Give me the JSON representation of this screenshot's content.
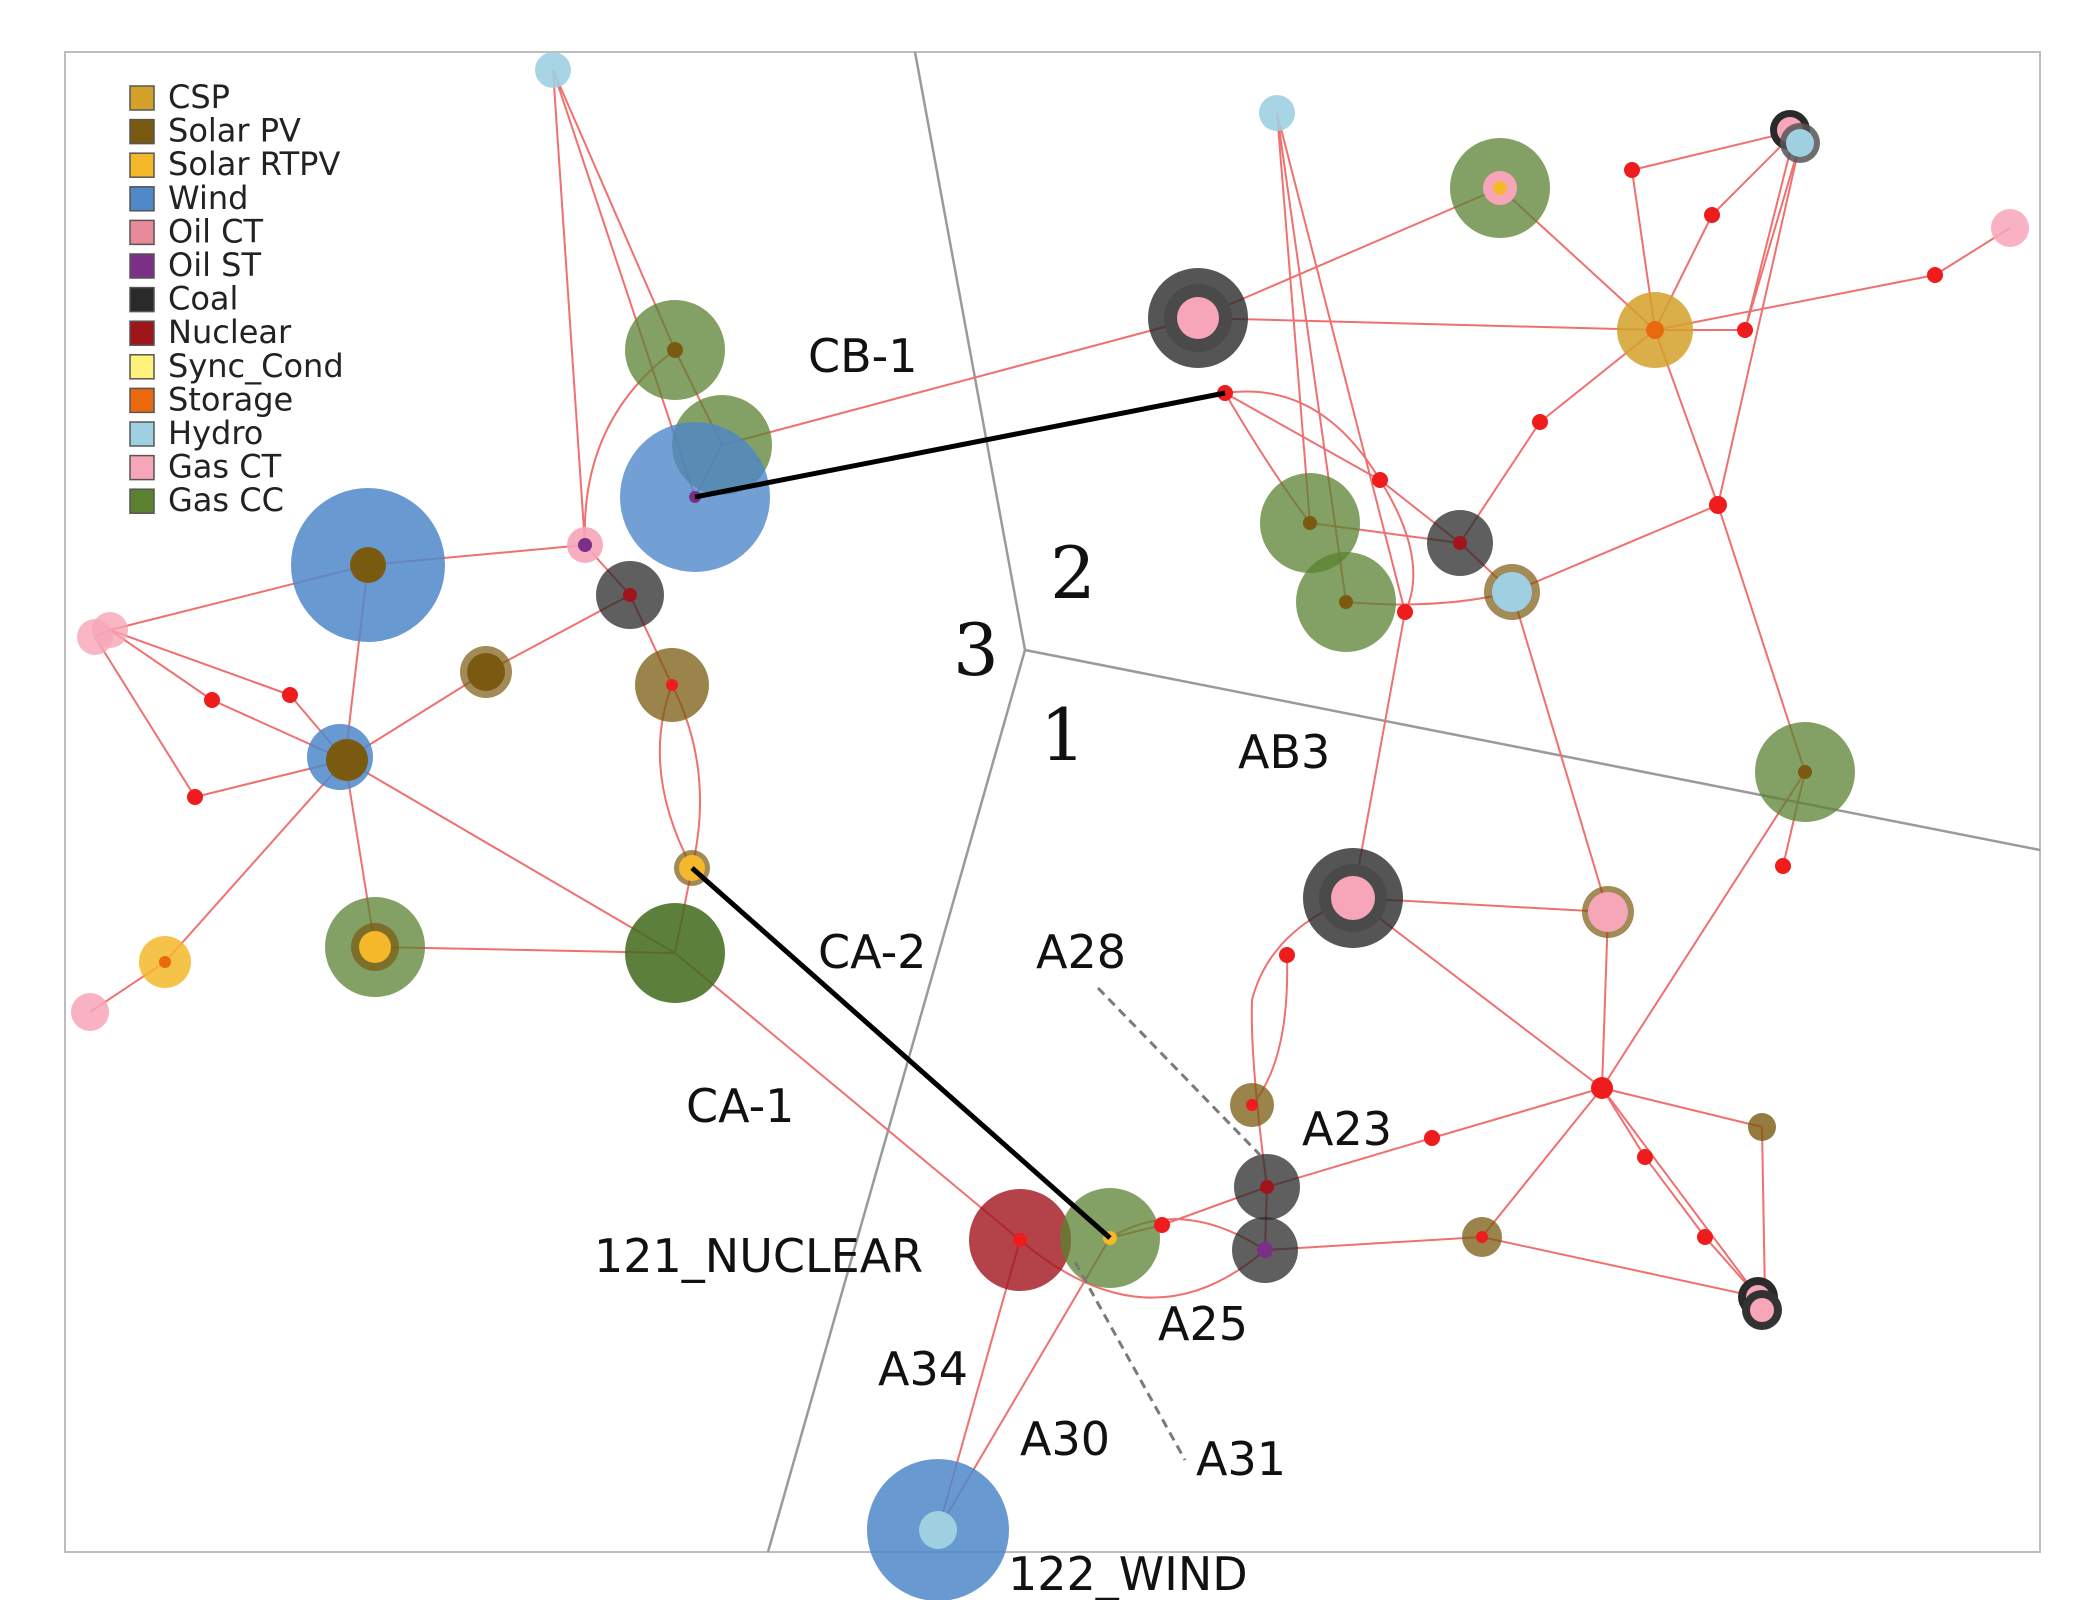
{
  "legend": [
    {
      "label": "CSP",
      "color": "#d4a12a"
    },
    {
      "label": "Solar PV",
      "color": "#7a5a10"
    },
    {
      "label": "Solar RTPV",
      "color": "#f5b82a"
    },
    {
      "label": "Wind",
      "color": "#4f87c9"
    },
    {
      "label": "Oil CT",
      "color": "#e88a9a"
    },
    {
      "label": "Oil ST",
      "color": "#7b2f86"
    },
    {
      "label": "Coal",
      "color": "#2a2a2a"
    },
    {
      "label": "Nuclear",
      "color": "#a0141c"
    },
    {
      "label": "Sync_Cond",
      "color": "#fff27a"
    },
    {
      "label": "Storage",
      "color": "#e8690e"
    },
    {
      "label": "Hydro",
      "color": "#9ed0e2"
    },
    {
      "label": "Gas CT",
      "color": "#f7a5b8"
    },
    {
      "label": "Gas CC",
      "color": "#5a8230"
    }
  ],
  "regions": [
    "1",
    "2",
    "3"
  ],
  "labels": {
    "cb1": "CB-1",
    "ca2": "CA-2",
    "ca1": "CA-1",
    "ab3": "AB3",
    "a28": "A28",
    "a23": "A23",
    "a25": "A25",
    "a34": "A34",
    "a30": "A30",
    "a31": "A31",
    "nuclear": "121_NUCLEAR",
    "wind": "122_WIND"
  },
  "colors": {
    "line": "#f07070",
    "bus": "#ee1c1c",
    "boundary": "#9a9a9a",
    "frame": "#bdbdbd",
    "tie": "#000000"
  }
}
